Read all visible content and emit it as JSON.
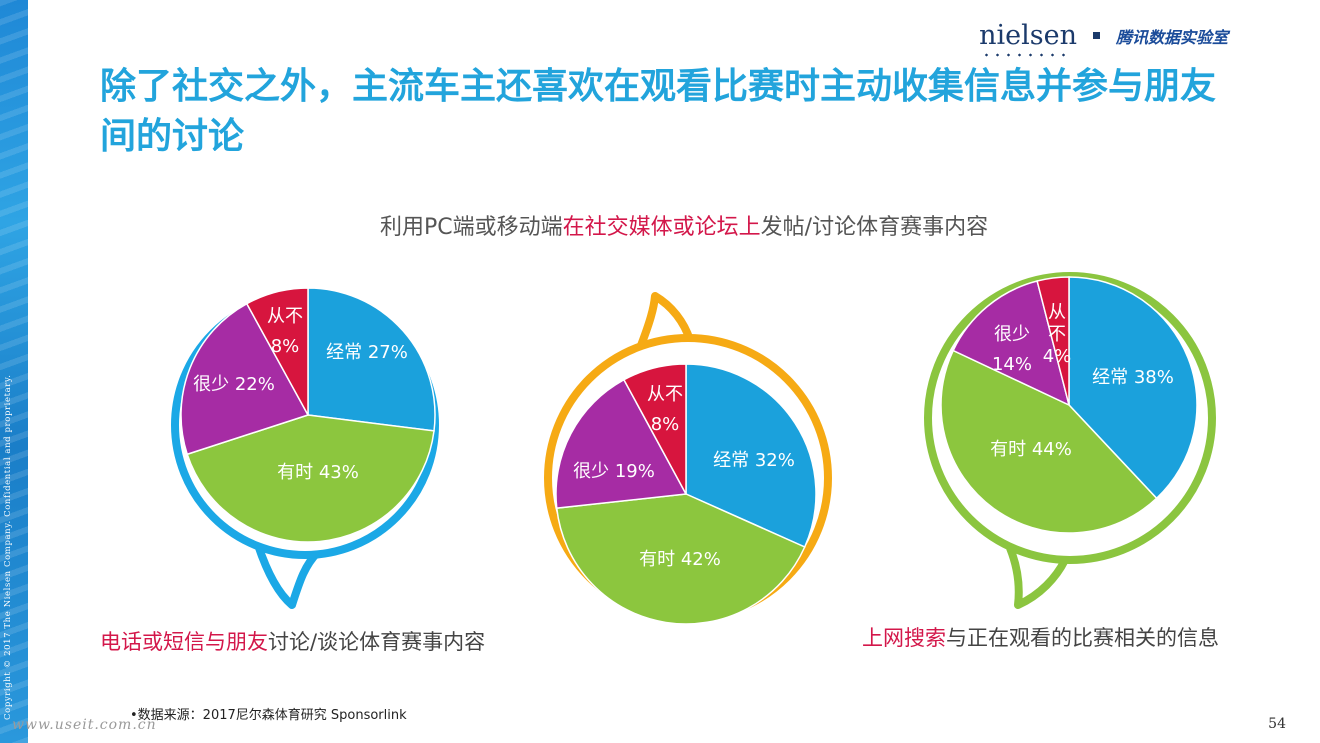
{
  "header": {
    "brand_logo": "nielsen",
    "brand_partner": "腾讯数据实验室",
    "title": "除了社交之外，主流车主还喜欢在观看比赛时主动收集信息并参与朋友间的讨论"
  },
  "colors": {
    "title": "#22a4dc",
    "highlight": "#d3174a",
    "often": "#1ba1dc",
    "sometimes": "#8cc63e",
    "rarely": "#a62ca4",
    "never": "#d7153e",
    "ring_left": "#1ba8e6",
    "ring_middle": "#f6aa14",
    "ring_right": "#8bc53f"
  },
  "chart_data": [
    {
      "type": "pie",
      "caption_highlight": "电话或短信与朋友",
      "caption_rest": "讨论/谈论体育赛事内容",
      "slices": [
        {
          "label": "经常 27%",
          "value": 27
        },
        {
          "label": "有时 43%",
          "value": 43
        },
        {
          "label": "很少 22%",
          "value": 22
        },
        {
          "label": "从不 8%",
          "value": 8
        }
      ]
    },
    {
      "type": "pie",
      "caption_pre": "利用PC端或移动端",
      "caption_highlight": "在社交媒体或论坛上",
      "caption_post": "发帖/讨论体育赛事内容",
      "slices": [
        {
          "label": "经常 32%",
          "value": 32
        },
        {
          "label": "有时 42%",
          "value": 42
        },
        {
          "label": "很少 19%",
          "value": 19
        },
        {
          "label": "从不 8%",
          "value": 8
        }
      ]
    },
    {
      "type": "pie",
      "caption_highlight": "上网搜索",
      "caption_rest": "与正在观看的比赛相关的信息",
      "slices": [
        {
          "label": "经常 38%",
          "value": 38
        },
        {
          "label": "有时 44%",
          "value": 44
        },
        {
          "label": "很少 14%",
          "value": 14
        },
        {
          "label": "从不 4%",
          "value": 4
        }
      ]
    }
  ],
  "footer": {
    "source": "•数据来源：2017尼尔森体育研究 Sponsorlink",
    "copyright": "Copyright © 2017 The Nielsen Company. Confidential and proprietary.",
    "watermark": "www.useit.com.cn",
    "page_number": "54"
  }
}
